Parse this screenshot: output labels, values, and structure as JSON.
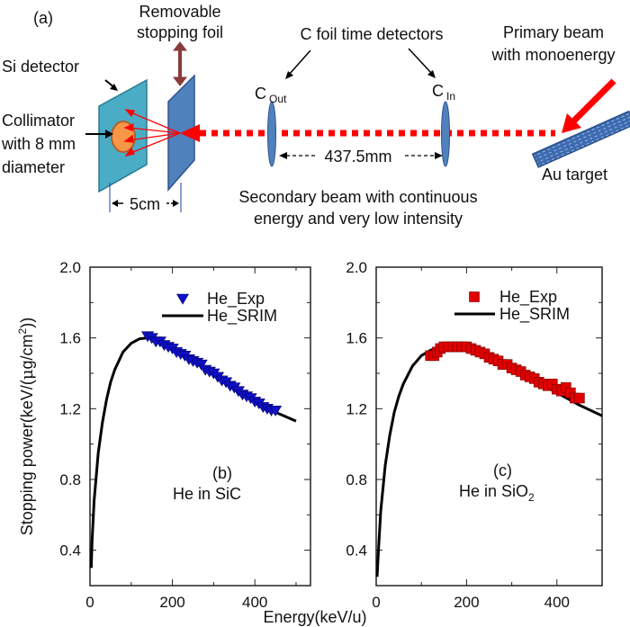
{
  "diagram": {
    "panel_label": "(a)",
    "foil_label": [
      "Removable",
      "stopping foil"
    ],
    "si_detector_label": "Si detector",
    "collimator_label": [
      "Collimator",
      "with 8 mm",
      "diameter"
    ],
    "c_foil_label": "C foil time detectors",
    "c_out": {
      "main": "C",
      "sub": "Out"
    },
    "c_in": {
      "main": "C",
      "sub": "In"
    },
    "distance_label": "437.5mm",
    "gap_label": "5cm",
    "secondary_label": [
      "Secondary beam  with continuous",
      "energy and very low intensity"
    ],
    "primary_label": [
      "Primary beam",
      "with monoenergy"
    ],
    "target_label": "Au target",
    "colors": {
      "beam": "#ff0000",
      "si_detector": "#4bacc6",
      "foil": "#4f81bd",
      "collimator": "#f79646",
      "foil_arrow": "#8b3a3a",
      "target": "#3d6bb0"
    }
  },
  "shared": {
    "ylabel": "Stopping power(keV/(μg/cm²))",
    "ylabel_parts": [
      "Stopping power(keV/(",
      "μ",
      "g/cm",
      "2",
      "))"
    ],
    "xlabel": "Energy(keV/u)"
  },
  "chart_data": [
    {
      "type": "scatter+line",
      "panel": "(b)",
      "annotation": [
        "(b)",
        "He in SiC"
      ],
      "xlim": [
        0,
        535
      ],
      "ylim": [
        0.2,
        2.0
      ],
      "xticks": [
        0,
        200,
        400
      ],
      "yticks": [
        0.4,
        0.8,
        1.2,
        1.6,
        2.0
      ],
      "xtick_labels": [
        "0",
        "200",
        "400"
      ],
      "ytick_labels": [
        "0.4",
        "0.8",
        "1.2",
        "1.6",
        "2.0"
      ],
      "legend": {
        "position": "top-right",
        "entries": [
          "He_Exp",
          "He_SRIM"
        ]
      },
      "series": [
        {
          "name": "He_Exp",
          "marker": "triangle-down",
          "color": "#1010c8",
          "x": [
            140,
            150,
            160,
            170,
            180,
            190,
            200,
            210,
            220,
            230,
            240,
            250,
            260,
            270,
            280,
            290,
            300,
            310,
            320,
            330,
            340,
            350,
            360,
            370,
            380,
            390,
            400,
            410,
            420,
            430,
            440,
            450
          ],
          "y": [
            1.61,
            1.6,
            1.58,
            1.58,
            1.56,
            1.55,
            1.54,
            1.52,
            1.51,
            1.5,
            1.48,
            1.47,
            1.46,
            1.45,
            1.42,
            1.41,
            1.4,
            1.38,
            1.36,
            1.35,
            1.33,
            1.32,
            1.3,
            1.28,
            1.27,
            1.26,
            1.24,
            1.23,
            1.21,
            1.2,
            1.19,
            1.19
          ]
        },
        {
          "name": "He_SRIM",
          "marker": "line",
          "color": "#000000",
          "x": [
            3,
            5,
            10,
            20,
            30,
            40,
            50,
            60,
            80,
            100,
            120,
            140,
            160,
            200,
            250,
            300,
            350,
            400,
            450,
            500
          ],
          "y": [
            0.3,
            0.45,
            0.68,
            0.95,
            1.12,
            1.25,
            1.35,
            1.42,
            1.52,
            1.57,
            1.595,
            1.6,
            1.59,
            1.55,
            1.47,
            1.39,
            1.31,
            1.24,
            1.18,
            1.13
          ]
        }
      ]
    },
    {
      "type": "scatter+line",
      "panel": "(c)",
      "annotation": [
        "(c)",
        "He in SiO",
        "2"
      ],
      "xlim": [
        0,
        500
      ],
      "ylim": [
        0.2,
        2.0
      ],
      "xticks": [
        0,
        200,
        400
      ],
      "yticks": [
        0.4,
        0.8,
        1.2,
        1.6,
        2.0
      ],
      "xtick_labels": [
        "0",
        "200",
        "400"
      ],
      "ytick_labels": [
        "0.4",
        "0.8",
        "1.2",
        "1.6",
        "2.0"
      ],
      "legend": {
        "position": "top-right",
        "entries": [
          "He_Exp",
          "He_SRIM"
        ]
      },
      "series": [
        {
          "name": "He_Exp",
          "marker": "square",
          "color": "#e00000",
          "x": [
            120,
            128,
            135,
            142,
            150,
            160,
            170,
            180,
            190,
            200,
            210,
            220,
            230,
            240,
            250,
            260,
            270,
            280,
            290,
            300,
            310,
            320,
            330,
            340,
            350,
            360,
            370,
            380,
            390,
            400,
            410,
            420,
            430,
            440,
            450
          ],
          "y": [
            1.5,
            1.5,
            1.52,
            1.54,
            1.55,
            1.55,
            1.55,
            1.55,
            1.55,
            1.55,
            1.54,
            1.53,
            1.52,
            1.51,
            1.49,
            1.48,
            1.47,
            1.45,
            1.45,
            1.43,
            1.42,
            1.41,
            1.39,
            1.38,
            1.37,
            1.35,
            1.34,
            1.33,
            1.34,
            1.31,
            1.3,
            1.32,
            1.29,
            1.26,
            1.26
          ]
        },
        {
          "name": "He_SRIM",
          "marker": "line",
          "color": "#000000",
          "x": [
            2,
            5,
            10,
            20,
            30,
            40,
            50,
            60,
            80,
            100,
            120,
            140,
            160,
            180,
            200,
            250,
            300,
            350,
            400,
            450,
            500
          ],
          "y": [
            0.25,
            0.4,
            0.62,
            0.88,
            1.05,
            1.18,
            1.27,
            1.34,
            1.44,
            1.5,
            1.53,
            1.55,
            1.56,
            1.56,
            1.55,
            1.5,
            1.43,
            1.36,
            1.29,
            1.22,
            1.16
          ]
        }
      ]
    }
  ]
}
